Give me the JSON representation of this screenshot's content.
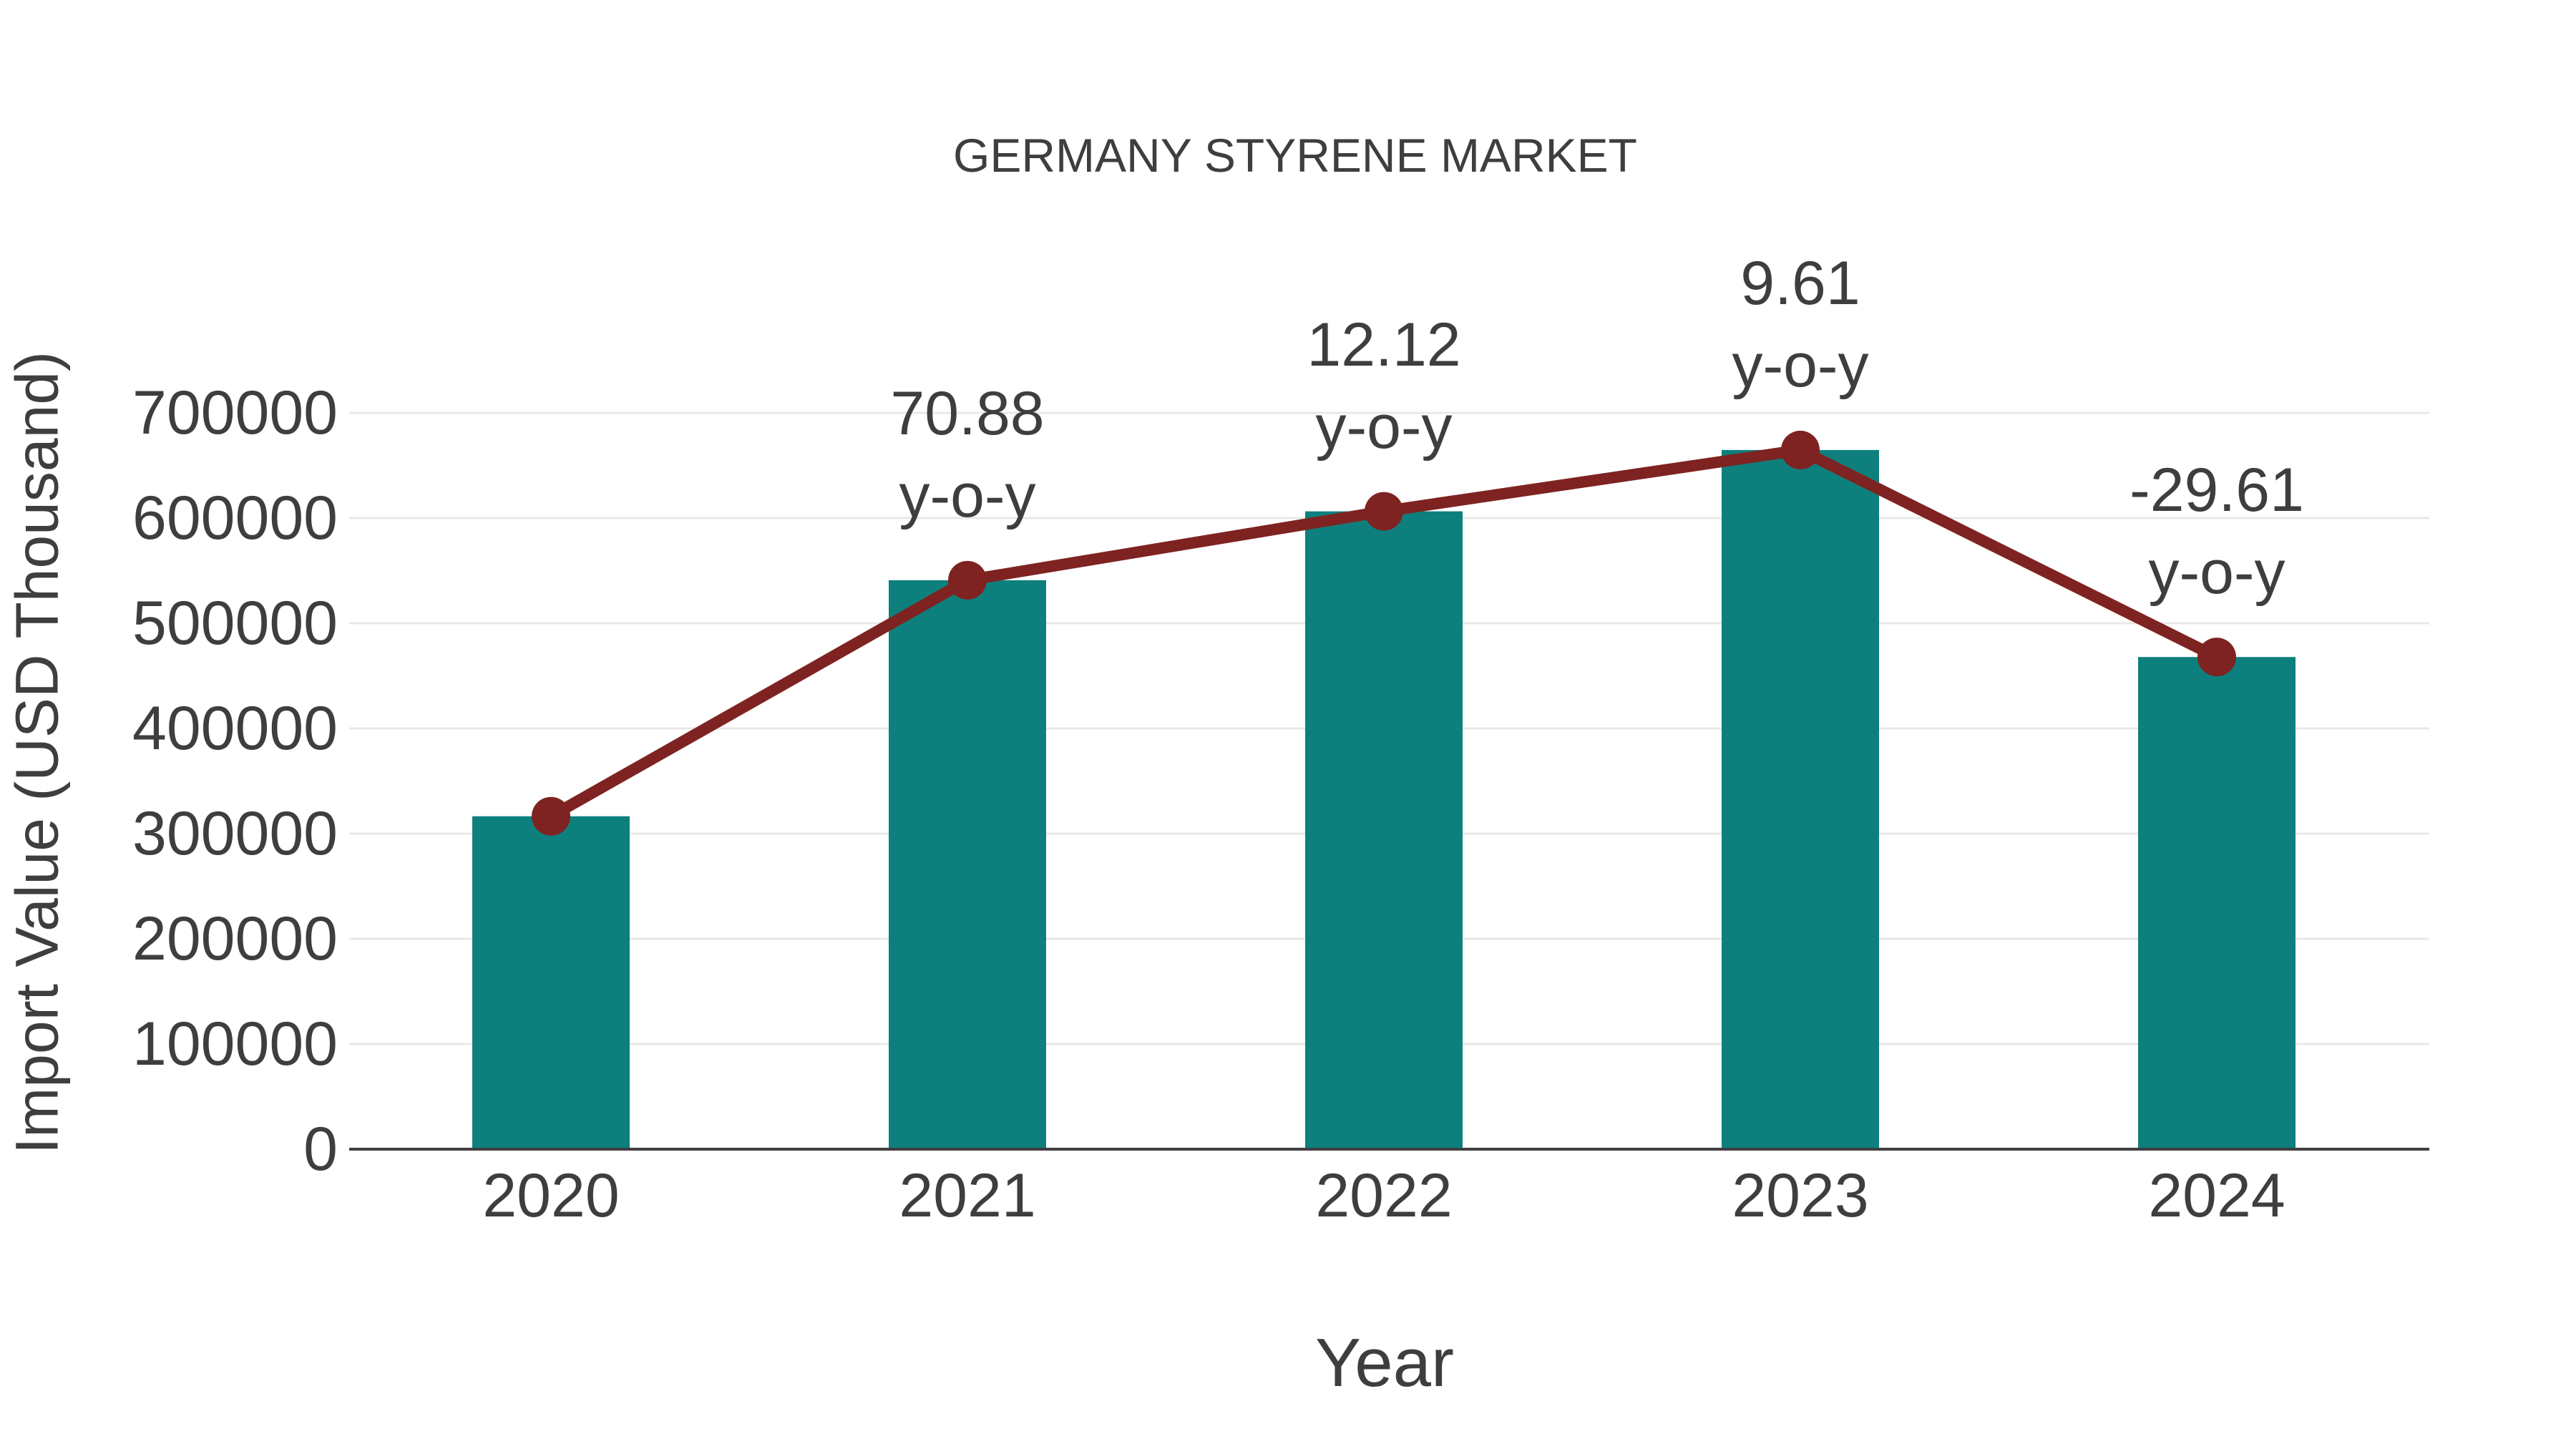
{
  "title": "GERMANY STYRENE MARKET",
  "chart_data": {
    "type": "bar",
    "title": "GERMANY STYRENE MARKET",
    "xlabel": "Year",
    "ylabel": "Import Value (USD Thousand)",
    "categories": [
      "2020",
      "2021",
      "2022",
      "2023",
      "2024"
    ],
    "series": [
      {
        "name": "Import Value (USD Thousand)",
        "type": "bar",
        "color": "#0d807d",
        "values": [
          316500,
          540900,
          606400,
          664700,
          467900
        ]
      },
      {
        "name": "y-o-y trend",
        "type": "line",
        "color": "#7e2321",
        "values": [
          316500,
          540900,
          606400,
          664700,
          467900
        ]
      }
    ],
    "annotations": [
      {
        "category": "2021",
        "line1": "70.88",
        "line2": "y-o-y"
      },
      {
        "category": "2022",
        "line1": "12.12",
        "line2": "y-o-y"
      },
      {
        "category": "2023",
        "line1": "9.61",
        "line2": "y-o-y"
      },
      {
        "category": "2024",
        "line1": "-29.61",
        "line2": "y-o-y"
      }
    ],
    "ylim": [
      0,
      700000
    ],
    "y_ticks": [
      0,
      100000,
      200000,
      300000,
      400000,
      500000,
      600000,
      700000
    ],
    "grid": true,
    "legend_position": "none"
  },
  "colors": {
    "bar": "#0d807d",
    "line": "#7e2321",
    "marker": "#7e2321",
    "text": "#3e3e3e",
    "gridline": "#e8e8e8",
    "axis_line": "#3f3f3f",
    "background": "#ffffff"
  }
}
